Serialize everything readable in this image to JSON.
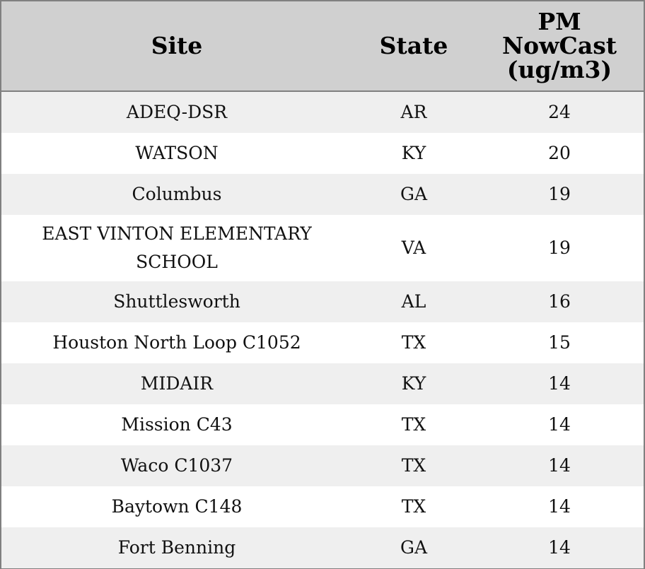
{
  "chart_data": {
    "type": "table",
    "columns": [
      "Site",
      "State",
      "PM NowCast (ug/m3)"
    ],
    "rows": [
      {
        "site": "ADEQ-DSR",
        "state": "AR",
        "pm": 24
      },
      {
        "site": "WATSON",
        "state": "KY",
        "pm": 20
      },
      {
        "site": "Columbus",
        "state": "GA",
        "pm": 19
      },
      {
        "site": "EAST VINTON ELEMENTARY SCHOOL",
        "state": "VA",
        "pm": 19
      },
      {
        "site": "Shuttlesworth",
        "state": "AL",
        "pm": 16
      },
      {
        "site": "Houston North Loop C1052",
        "state": "TX",
        "pm": 15
      },
      {
        "site": "MIDAIR",
        "state": "KY",
        "pm": 14
      },
      {
        "site": "Mission C43",
        "state": "TX",
        "pm": 14
      },
      {
        "site": "Waco C1037",
        "state": "TX",
        "pm": 14
      },
      {
        "site": "Baytown C148",
        "state": "TX",
        "pm": 14
      },
      {
        "site": "Fort Benning",
        "state": "GA",
        "pm": 14
      }
    ]
  },
  "colors": {
    "header_bg": "#d0d0d0",
    "row_stripe": "#efefef",
    "row_plain": "#ffffff",
    "border": "#808080"
  }
}
